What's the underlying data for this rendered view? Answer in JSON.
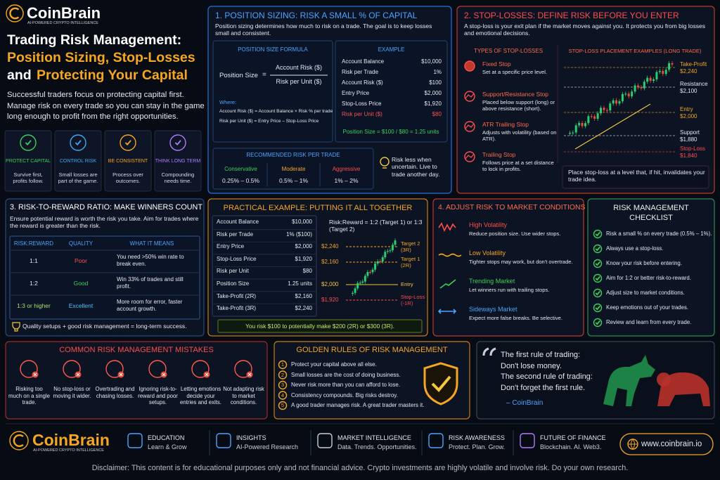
{
  "header": {
    "brand": "CoinBrain",
    "tagline": "AI-POWERED CRYPTO INTELLIGENCE",
    "title_line1": "Trading Risk Management:",
    "title_line2": "Position Sizing, Stop-Losses",
    "title_line3_prefix": "and",
    "title_line3": "Protecting Your Capital",
    "intro": "Successful traders focus on protecting capital first. Manage risk on every trade so you can stay in the game long enough to profit from the right opportunities.",
    "pillars": [
      {
        "title": "PROTECT CAPITAL",
        "text": "Survive first, profits follow."
      },
      {
        "title": "CONTROL RISK",
        "text": "Small losses are part of the game."
      },
      {
        "title": "BE CONSISTENT",
        "text": "Process over outcomes."
      },
      {
        "title": "THINK LONG TERM",
        "text": "Compounding needs time."
      }
    ]
  },
  "position_sizing": {
    "title": "1. POSITION SIZING: RISK A SMALL % OF CAPITAL",
    "intro": "Position sizing determines how much to risk on a trade. The goal is to keep losses small and consistent.",
    "formula": {
      "heading": "POSITION SIZE FORMULA",
      "lhs": "Position Size",
      "equals": "=",
      "numerator": "Account Risk ($)",
      "denominator": "Risk per Unit ($)",
      "where": "Where:",
      "definitions": [
        "Account Risk ($) = Account Balance × Risk % per trade",
        "Risk per Unit ($) = Entry Price – Stop-Loss Price"
      ]
    },
    "example": {
      "heading": "EXAMPLE",
      "rows": [
        [
          "Account Balance",
          "$10,000"
        ],
        [
          "Risk per Trade",
          "1%"
        ],
        [
          "Account Risk ($)",
          "$100"
        ],
        [
          "Entry Price",
          "$2,000"
        ],
        [
          "Stop-Loss Price",
          "$1,920"
        ],
        [
          "Risk per Unit ($)",
          "$80"
        ]
      ],
      "result": "Position Size = $100 / $80 = 1.25 units"
    },
    "recommended": {
      "heading": "RECOMMENDED RISK PER TRADE",
      "levels": [
        {
          "name": "Conservative",
          "range": "0.25% – 0.5%"
        },
        {
          "name": "Moderate",
          "range": "0.5% – 1%"
        },
        {
          "name": "Aggressive",
          "range": "1% – 2%"
        }
      ]
    },
    "tip": "Risk less when uncertain. Live to trade another day."
  },
  "stop_losses": {
    "title": "2. STOP-LOSSES: DEFINE RISK BEFORE YOU ENTER",
    "intro": "A stop-loss is your exit plan if the market moves against you. It protects you from big losses and emotional decisions.",
    "types_heading": "TYPES OF STOP-LOSSES",
    "types": [
      {
        "name": "Fixed Stop",
        "text": "Set at a specific price level."
      },
      {
        "name": "Support/Resistance Stop",
        "text": "Placed below support (long) or above resistance (short)."
      },
      {
        "name": "ATR Trailing Stop",
        "text": "Adjusts with volatility (based on ATR)."
      },
      {
        "name": "Trailing Stop",
        "text": "Follows price at a set distance to lock in profits."
      }
    ],
    "placement_heading": "STOP-LOSS PLACEMENT EXAMPLES (LONG TRADE)",
    "levels": [
      {
        "label": "Take-Profit",
        "value": "$2,240"
      },
      {
        "label": "Resistance",
        "value": "$2,100"
      },
      {
        "label": "Entry",
        "value": "$2,000"
      },
      {
        "label": "Support",
        "value": "$1,880"
      },
      {
        "label": "Stop-Loss",
        "value": "$1,840"
      }
    ],
    "note": "Place stop-loss at a level that, if hit, invalidates your trade idea."
  },
  "risk_reward": {
    "title": "3. RISK-TO-REWARD RATIO: MAKE WINNERS COUNT",
    "intro": "Ensure potential reward is worth the risk you take. Aim for trades where the reward is greater than the risk.",
    "headers": [
      "RISK:REWARD",
      "QUALITY",
      "WHAT IT MEANS"
    ],
    "rows": [
      [
        "1:1",
        "Poor",
        "You need >50% win rate to break even."
      ],
      [
        "1:2",
        "Good",
        "Win 33% of trades and still profit."
      ],
      [
        "1:3 or higher",
        "Excellent",
        "More room for error, faster account growth."
      ]
    ],
    "footer": "Quality setups + good risk management = long-term success."
  },
  "practical_example": {
    "title": "PRACTICAL EXAMPLE: PUTTING IT ALL TOGETHER",
    "rows": [
      [
        "Account Balance",
        "$10,000"
      ],
      [
        "Risk per Trade",
        "1% ($100)"
      ],
      [
        "Entry Price",
        "$2,000"
      ],
      [
        "Stop-Loss Price",
        "$1,920"
      ],
      [
        "Risk per Unit",
        "$80"
      ],
      [
        "Position Size",
        "1.25 units"
      ],
      [
        "Take-Profit (2R)",
        "$2,160"
      ],
      [
        "Take-Profit (3R)",
        "$2,240"
      ]
    ],
    "chart_title": "Risk:Reward = 1:2 (Target 1) or 1:3 (Target 2)",
    "levels": [
      {
        "price": "$2,240",
        "label": "Target 2 (3R)"
      },
      {
        "price": "$2,160",
        "label": "Target 1 (2R)"
      },
      {
        "price": "$2,000",
        "label": "Entry"
      },
      {
        "price": "$1,920",
        "label": "Stop-Loss (-1R)"
      }
    ],
    "summary": "You risk $100 to potentially make $200 (2R) or $300 (3R)."
  },
  "market_conditions": {
    "title": "4. ADJUST RISK TO MARKET CONDITIONS",
    "items": [
      {
        "name": "High Volatility",
        "text": "Reduce position size. Use wider stops."
      },
      {
        "name": "Low Volatility",
        "text": "Tighter stops may work, but don't overtrade."
      },
      {
        "name": "Trending Market",
        "text": "Let winners run with trailing stops."
      },
      {
        "name": "Sideways Market",
        "text": "Expect more false breaks. Be selective."
      }
    ]
  },
  "checklist": {
    "title": "RISK MANAGEMENT CHECKLIST",
    "items": [
      "Risk a small % on every trade (0.5% – 1%).",
      "Always use a stop-loss.",
      "Know your risk before entering.",
      "Aim for 1:2 or better risk-to-reward.",
      "Adjust size to market conditions.",
      "Keep emotions out of your trades.",
      "Review and learn from every trade."
    ]
  },
  "mistakes": {
    "title": "COMMON RISK MANAGEMENT MISTAKES",
    "items": [
      "Risking too much on a single trade.",
      "No stop-loss or moving it wider.",
      "Overtrading and chasing losses.",
      "Ignoring risk-to-reward and poor setups.",
      "Letting emotions decide your entries and exits.",
      "Not adapting risk to market conditions."
    ]
  },
  "golden_rules": {
    "title": "GOLDEN RULES OF RISK MANAGEMENT",
    "rules": [
      {
        "number": 1,
        "text": "Protect your capital above all else."
      },
      {
        "number": 2,
        "text": "Small losses are the cost of doing business."
      },
      {
        "number": 3,
        "text": "Never risk more than you can afford to lose."
      },
      {
        "number": 4,
        "text": "Consistency compounds. Big risks destroy."
      },
      {
        "number": 5,
        "text": "A good trader manages risk. A great trader masters it."
      }
    ]
  },
  "quote": {
    "lines": [
      "The first rule of trading:",
      "Don't lose money.",
      "The second rule of trading:",
      "Don't forget the first rule."
    ],
    "author": "– CoinBrain"
  },
  "footer": {
    "brand": "CoinBrain",
    "tagline": "AI-POWERED CRYPTO INTELLIGENCE",
    "items": [
      {
        "title": "EDUCATION",
        "text": "Learn & Grow"
      },
      {
        "title": "INSIGHTS",
        "text": "AI-Powered Research"
      },
      {
        "title": "MARKET INTELLIGENCE",
        "text": "Data. Trends. Opportunities."
      },
      {
        "title": "RISK AWARENESS",
        "text": "Protect. Plan. Grow."
      },
      {
        "title": "FUTURE OF FINANCE",
        "text": "Blockchain. AI. Web3."
      }
    ],
    "website": "www.coinbrain.io",
    "disclaimer": "Disclaimer: This content is for educational purposes only and not financial advice. Crypto investments are highly volatile and involve risk. Do your own research."
  }
}
